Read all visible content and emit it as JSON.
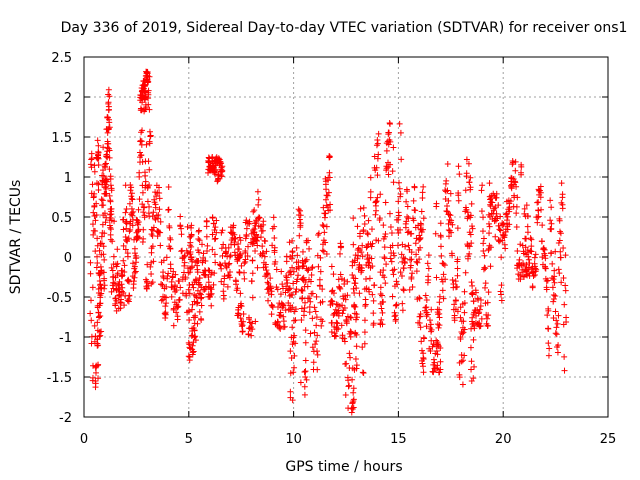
{
  "chart_data": {
    "type": "scatter",
    "title": "Day 336 of 2019, Sidereal Day-to-day VTEC variation (SDTVAR) for receiver ons1",
    "xlabel": "GPS time / hours",
    "ylabel": "SDTVAR / TECUs",
    "xlim": [
      0,
      25
    ],
    "ylim": [
      -2,
      2.5
    ],
    "xticks": [
      0,
      5,
      10,
      15,
      20,
      25
    ],
    "yticks": [
      -2,
      -1.5,
      -1,
      -0.5,
      0,
      0.5,
      1,
      1.5,
      2,
      2.5
    ],
    "xtick_labels": [
      "0",
      "5",
      "10",
      "15",
      "20",
      "25"
    ],
    "ytick_labels": [
      "-2",
      "-1.5",
      "-1",
      "-0.5",
      "0",
      "0.5",
      "1",
      "1.5",
      "2",
      "2.5"
    ],
    "grid": true,
    "marker": "plus",
    "marker_color": "#ff0000",
    "series": [
      {
        "name": "SDTVAR",
        "clusters": [
          {
            "x": [
              0.3,
              0.8
            ],
            "y": [
              -1.7,
              1.4
            ]
          },
          {
            "x": [
              0.6,
              1.0
            ],
            "y": [
              -1.0,
              1.5
            ]
          },
          {
            "x": [
              1.0,
              1.3
            ],
            "y": [
              -0.4,
              2.1
            ]
          },
          {
            "x": [
              1.3,
              2.0
            ],
            "y": [
              -0.7,
              1.5
            ]
          },
          {
            "x": [
              2.0,
              2.6
            ],
            "y": [
              -0.6,
              0.9
            ]
          },
          {
            "x": [
              2.7,
              3.1
            ],
            "y": [
              1.8,
              2.35
            ]
          },
          {
            "x": [
              2.6,
              3.3
            ],
            "y": [
              -0.4,
              1.6
            ]
          },
          {
            "x": [
              3.3,
              4.2
            ],
            "y": [
              -0.8,
              0.9
            ]
          },
          {
            "x": [
              4.2,
              5.2
            ],
            "y": [
              -1.0,
              0.6
            ]
          },
          {
            "x": [
              5.0,
              5.5
            ],
            "y": [
              -1.3,
              0.4
            ]
          },
          {
            "x": [
              5.5,
              6.3
            ],
            "y": [
              -0.9,
              0.5
            ]
          },
          {
            "x": [
              5.9,
              6.6
            ],
            "y": [
              0.9,
              1.25
            ]
          },
          {
            "x": [
              6.5,
              7.5
            ],
            "y": [
              -0.8,
              0.4
            ]
          },
          {
            "x": [
              7.3,
              8.2
            ],
            "y": [
              -1.0,
              0.5
            ]
          },
          {
            "x": [
              8.0,
              9.0
            ],
            "y": [
              -1.1,
              1.05
            ]
          },
          {
            "x": [
              9.0,
              10.0
            ],
            "y": [
              -0.9,
              0.8
            ]
          },
          {
            "x": [
              9.8,
              10.6
            ],
            "y": [
              -1.8,
              0.6
            ]
          },
          {
            "x": [
              10.4,
              11.4
            ],
            "y": [
              -1.5,
              0.9
            ]
          },
          {
            "x": [
              11.4,
              12.2
            ],
            "y": [
              -1.0,
              1.3
            ]
          },
          {
            "x": [
              12.2,
              13.0
            ],
            "y": [
              -1.95,
              0.3
            ]
          },
          {
            "x": [
              12.8,
              13.6
            ],
            "y": [
              -1.6,
              0.7
            ]
          },
          {
            "x": [
              13.6,
              14.4
            ],
            "y": [
              -0.9,
              1.55
            ]
          },
          {
            "x": [
              14.4,
              15.2
            ],
            "y": [
              -0.8,
              1.7
            ]
          },
          {
            "x": [
              15.2,
              16.2
            ],
            "y": [
              -1.1,
              0.9
            ]
          },
          {
            "x": [
              16.0,
              17.0
            ],
            "y": [
              -1.45,
              0.6
            ]
          },
          {
            "x": [
              16.8,
              17.8
            ],
            "y": [
              -0.9,
              1.2
            ]
          },
          {
            "x": [
              17.8,
              18.6
            ],
            "y": [
              -1.6,
              1.3
            ]
          },
          {
            "x": [
              18.4,
              19.4
            ],
            "y": [
              -0.9,
              1.0
            ]
          },
          {
            "x": [
              19.3,
              20.3
            ],
            "y": [
              -0.6,
              0.8
            ]
          },
          {
            "x": [
              20.3,
              21.2
            ],
            "y": [
              -0.3,
              1.2
            ]
          },
          {
            "x": [
              21.1,
              22.1
            ],
            "y": [
              -0.4,
              0.9
            ]
          },
          {
            "x": [
              22.1,
              23.0
            ],
            "y": [
              -1.45,
              0.95
            ]
          }
        ]
      }
    ]
  }
}
